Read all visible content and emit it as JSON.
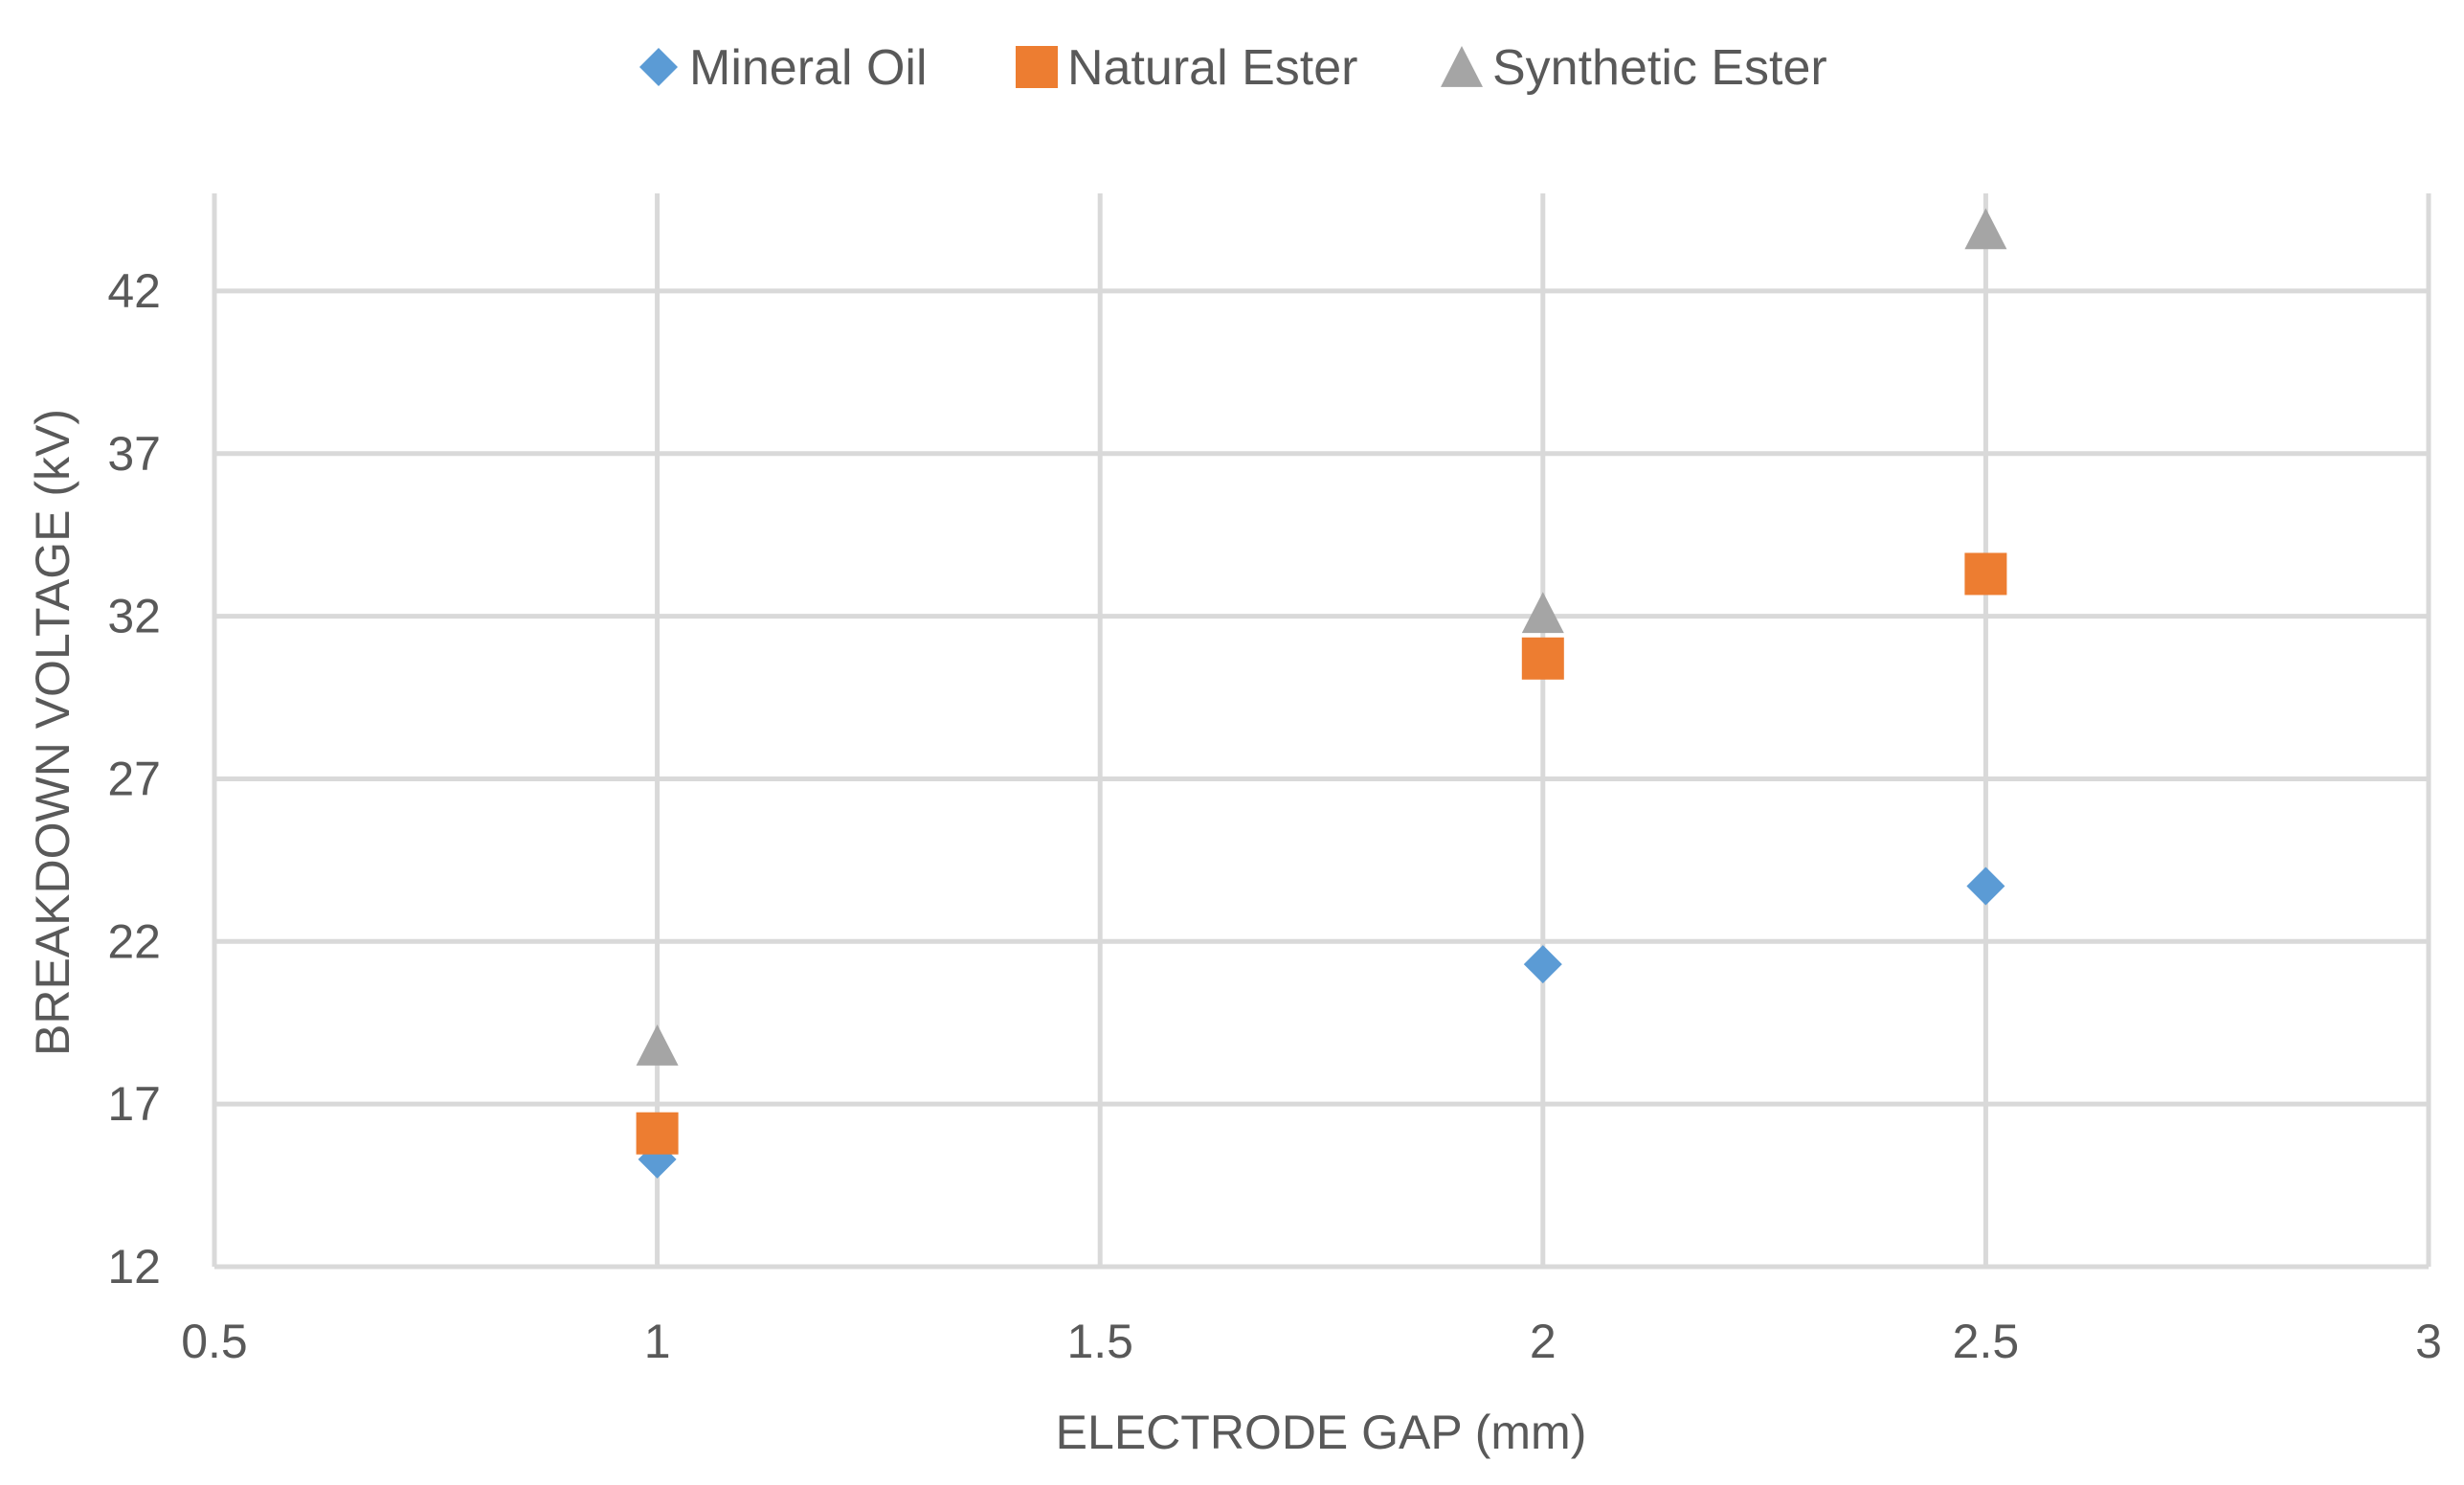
{
  "chart_data": {
    "type": "scatter",
    "title": "",
    "xlabel": "ELECTRODE GAP (mm)",
    "ylabel": "BREAKDOWN VOLTAGE (kV)",
    "xlim": [
      0.5,
      3
    ],
    "ylim": [
      12,
      45
    ],
    "xticks": [
      0.5,
      1,
      1.5,
      2,
      2.5,
      3
    ],
    "yticks": [
      12,
      17,
      22,
      27,
      32,
      37,
      42
    ],
    "grid": true,
    "legend_position": "top",
    "series": [
      {
        "name": "Mineral Oil",
        "marker": "diamond",
        "color": "#5B9BD5",
        "x": [
          1,
          2,
          2.5
        ],
        "y": [
          15.3,
          21.3,
          23.7
        ]
      },
      {
        "name": "Natural Ester",
        "marker": "square",
        "color": "#ED7D31",
        "x": [
          1,
          2,
          2.5
        ],
        "y": [
          16.1,
          30.7,
          33.3
        ]
      },
      {
        "name": "Synthetic Ester",
        "marker": "triangle",
        "color": "#A5A5A5",
        "x": [
          1,
          2,
          2.5
        ],
        "y": [
          18.8,
          32.1,
          43.9
        ]
      }
    ]
  }
}
